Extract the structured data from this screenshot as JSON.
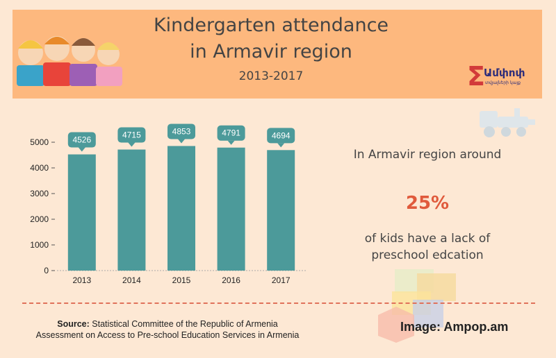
{
  "header": {
    "title_line1": "Kindergarten attendance",
    "title_line2": "in Armavir region",
    "subtitle": "2013-2017"
  },
  "logo": {
    "name": "Ամփոփ",
    "tagline": "տվյալների կայք",
    "icon": "sigma-icon"
  },
  "annotation": {
    "intro": "In Armavir region around",
    "percent": "25%",
    "outro_line1": "of kids have a lack of",
    "outro_line2": "preschool edcation"
  },
  "footer": {
    "source_label": "Source:",
    "source_text1": "Statistical Committee of the Republic of Armenia",
    "source_text2": "Assessment on Access to Pre-school Education Services in Armenia",
    "credit": "Image: Ampop.am"
  },
  "colors": {
    "bar": "#4c9a9a",
    "accent": "#e05a3c",
    "header": "#fdb87e",
    "background": "#fde8d4"
  },
  "chart_data": {
    "type": "bar",
    "categories": [
      "2013",
      "2014",
      "2015",
      "2016",
      "2017"
    ],
    "values": [
      4526,
      4715,
      4853,
      4791,
      4694
    ],
    "ylim": [
      0,
      5000
    ],
    "yticks": [
      0,
      1000,
      2000,
      3000,
      4000,
      5000
    ],
    "grid": false,
    "data_labels": true
  }
}
